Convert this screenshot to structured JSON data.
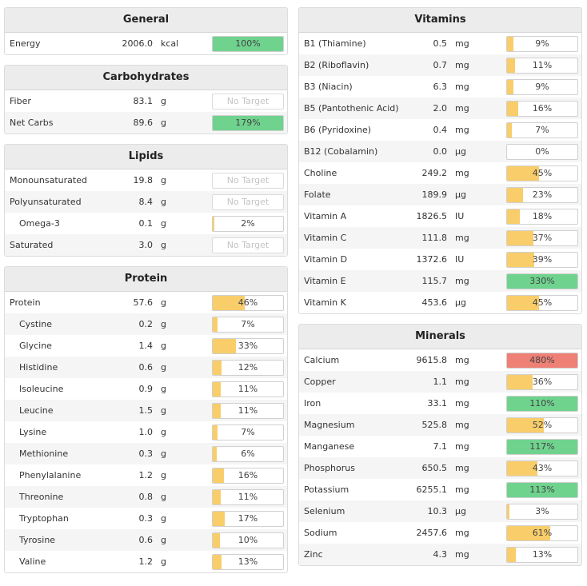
{
  "colors": {
    "low": "#f8cd6a",
    "ok": "#6fd38e",
    "over": "#ee8076"
  },
  "left_panels": [
    {
      "title": "General",
      "rows": [
        {
          "name": "Energy",
          "amount": "2006.0",
          "unit": "kcal",
          "pct": "100%",
          "fill": 100,
          "status": "ok"
        }
      ]
    },
    {
      "title": "Carbohydrates",
      "rows": [
        {
          "name": "Fiber",
          "amount": "83.1",
          "unit": "g",
          "pct": "No Target",
          "fill": 0,
          "status": "none"
        },
        {
          "name": "Net Carbs",
          "amount": "89.6",
          "unit": "g",
          "pct": "179%",
          "fill": 100,
          "status": "ok"
        }
      ]
    },
    {
      "title": "Lipids",
      "rows": [
        {
          "name": "Monounsaturated",
          "amount": "19.8",
          "unit": "g",
          "pct": "No Target",
          "fill": 0,
          "status": "none"
        },
        {
          "name": "Polyunsaturated",
          "amount": "8.4",
          "unit": "g",
          "pct": "No Target",
          "fill": 0,
          "status": "none"
        },
        {
          "name": "Omega-3",
          "amount": "0.1",
          "unit": "g",
          "pct": "2%",
          "fill": 2,
          "status": "low",
          "indent": true
        },
        {
          "name": "Saturated",
          "amount": "3.0",
          "unit": "g",
          "pct": "No Target",
          "fill": 0,
          "status": "none"
        }
      ]
    },
    {
      "title": "Protein",
      "rows": [
        {
          "name": "Protein",
          "amount": "57.6",
          "unit": "g",
          "pct": "46%",
          "fill": 46,
          "status": "low"
        },
        {
          "name": "Cystine",
          "amount": "0.2",
          "unit": "g",
          "pct": "7%",
          "fill": 7,
          "status": "low",
          "indent": true
        },
        {
          "name": "Glycine",
          "amount": "1.4",
          "unit": "g",
          "pct": "33%",
          "fill": 33,
          "status": "low",
          "indent": true
        },
        {
          "name": "Histidine",
          "amount": "0.6",
          "unit": "g",
          "pct": "12%",
          "fill": 12,
          "status": "low",
          "indent": true
        },
        {
          "name": "Isoleucine",
          "amount": "0.9",
          "unit": "g",
          "pct": "11%",
          "fill": 11,
          "status": "low",
          "indent": true
        },
        {
          "name": "Leucine",
          "amount": "1.5",
          "unit": "g",
          "pct": "11%",
          "fill": 11,
          "status": "low",
          "indent": true
        },
        {
          "name": "Lysine",
          "amount": "1.0",
          "unit": "g",
          "pct": "7%",
          "fill": 7,
          "status": "low",
          "indent": true
        },
        {
          "name": "Methionine",
          "amount": "0.3",
          "unit": "g",
          "pct": "6%",
          "fill": 6,
          "status": "low",
          "indent": true
        },
        {
          "name": "Phenylalanine",
          "amount": "1.2",
          "unit": "g",
          "pct": "16%",
          "fill": 16,
          "status": "low",
          "indent": true
        },
        {
          "name": "Threonine",
          "amount": "0.8",
          "unit": "g",
          "pct": "11%",
          "fill": 11,
          "status": "low",
          "indent": true
        },
        {
          "name": "Tryptophan",
          "amount": "0.3",
          "unit": "g",
          "pct": "17%",
          "fill": 17,
          "status": "low",
          "indent": true
        },
        {
          "name": "Tyrosine",
          "amount": "0.6",
          "unit": "g",
          "pct": "10%",
          "fill": 10,
          "status": "low",
          "indent": true
        },
        {
          "name": "Valine",
          "amount": "1.2",
          "unit": "g",
          "pct": "13%",
          "fill": 13,
          "status": "low",
          "indent": true
        }
      ]
    }
  ],
  "right_panels": [
    {
      "title": "Vitamins",
      "rows": [
        {
          "name": "B1 (Thiamine)",
          "amount": "0.5",
          "unit": "mg",
          "pct": "9%",
          "fill": 9,
          "status": "low"
        },
        {
          "name": "B2 (Riboflavin)",
          "amount": "0.7",
          "unit": "mg",
          "pct": "11%",
          "fill": 11,
          "status": "low"
        },
        {
          "name": "B3 (Niacin)",
          "amount": "6.3",
          "unit": "mg",
          "pct": "9%",
          "fill": 9,
          "status": "low"
        },
        {
          "name": "B5 (Pantothenic Acid)",
          "amount": "2.0",
          "unit": "mg",
          "pct": "16%",
          "fill": 16,
          "status": "low"
        },
        {
          "name": "B6 (Pyridoxine)",
          "amount": "0.4",
          "unit": "mg",
          "pct": "7%",
          "fill": 7,
          "status": "low"
        },
        {
          "name": "B12 (Cobalamin)",
          "amount": "0.0",
          "unit": "µg",
          "pct": "0%",
          "fill": 0,
          "status": "low"
        },
        {
          "name": "Choline",
          "amount": "249.2",
          "unit": "mg",
          "pct": "45%",
          "fill": 45,
          "status": "low"
        },
        {
          "name": "Folate",
          "amount": "189.9",
          "unit": "µg",
          "pct": "23%",
          "fill": 23,
          "status": "low"
        },
        {
          "name": "Vitamin A",
          "amount": "1826.5",
          "unit": "IU",
          "pct": "18%",
          "fill": 18,
          "status": "low"
        },
        {
          "name": "Vitamin C",
          "amount": "111.8",
          "unit": "mg",
          "pct": "37%",
          "fill": 37,
          "status": "low"
        },
        {
          "name": "Vitamin D",
          "amount": "1372.6",
          "unit": "IU",
          "pct": "39%",
          "fill": 39,
          "status": "low"
        },
        {
          "name": "Vitamin E",
          "amount": "115.7",
          "unit": "mg",
          "pct": "330%",
          "fill": 100,
          "status": "ok"
        },
        {
          "name": "Vitamin K",
          "amount": "453.6",
          "unit": "µg",
          "pct": "45%",
          "fill": 45,
          "status": "low"
        }
      ]
    },
    {
      "title": "Minerals",
      "rows": [
        {
          "name": "Calcium",
          "amount": "9615.8",
          "unit": "mg",
          "pct": "480%",
          "fill": 100,
          "status": "over"
        },
        {
          "name": "Copper",
          "amount": "1.1",
          "unit": "mg",
          "pct": "36%",
          "fill": 36,
          "status": "low"
        },
        {
          "name": "Iron",
          "amount": "33.1",
          "unit": "mg",
          "pct": "110%",
          "fill": 100,
          "status": "ok"
        },
        {
          "name": "Magnesium",
          "amount": "525.8",
          "unit": "mg",
          "pct": "52%",
          "fill": 52,
          "status": "low"
        },
        {
          "name": "Manganese",
          "amount": "7.1",
          "unit": "mg",
          "pct": "117%",
          "fill": 100,
          "status": "ok"
        },
        {
          "name": "Phosphorus",
          "amount": "650.5",
          "unit": "mg",
          "pct": "43%",
          "fill": 43,
          "status": "low"
        },
        {
          "name": "Potassium",
          "amount": "6255.1",
          "unit": "mg",
          "pct": "113%",
          "fill": 100,
          "status": "ok"
        },
        {
          "name": "Selenium",
          "amount": "10.3",
          "unit": "µg",
          "pct": "3%",
          "fill": 3,
          "status": "low"
        },
        {
          "name": "Sodium",
          "amount": "2457.6",
          "unit": "mg",
          "pct": "61%",
          "fill": 61,
          "status": "low"
        },
        {
          "name": "Zinc",
          "amount": "4.3",
          "unit": "mg",
          "pct": "13%",
          "fill": 13,
          "status": "low"
        }
      ]
    }
  ]
}
